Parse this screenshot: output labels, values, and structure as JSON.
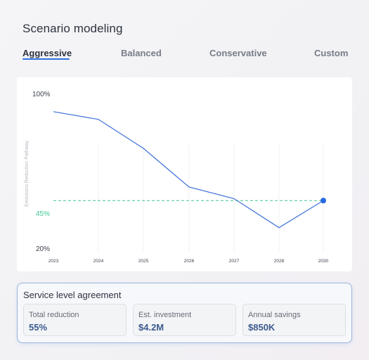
{
  "header": {
    "title": "Scenario modeling"
  },
  "tabs": [
    {
      "label": "Aggressive",
      "active": true
    },
    {
      "label": "Balanced",
      "active": false
    },
    {
      "label": "Conservative",
      "active": false
    },
    {
      "label": "Custom",
      "active": false
    }
  ],
  "chart_data": {
    "type": "line",
    "ylabel": "Emissions Reduction Pathway",
    "ytick_labels": {
      "top": "100%",
      "bottom": "20%"
    },
    "ylim": [
      20,
      100
    ],
    "x": [
      "2023",
      "2024",
      "2025",
      "2026",
      "2027",
      "2028",
      "2030"
    ],
    "values": [
      91,
      87,
      72,
      52,
      46,
      31,
      45
    ],
    "target": {
      "label": "45%",
      "value": 45
    },
    "grid": "vertical",
    "colors": {
      "line": "#3b6fd9",
      "target": "#40c790",
      "endpoint": "#2469e0"
    }
  },
  "sla": {
    "title": "Service level agreement",
    "metrics": [
      {
        "label": "Total reduction",
        "value": "55%"
      },
      {
        "label": "Est. investment",
        "value": "$4.2M"
      },
      {
        "label": "Annual savings",
        "value": "$850K"
      }
    ]
  }
}
